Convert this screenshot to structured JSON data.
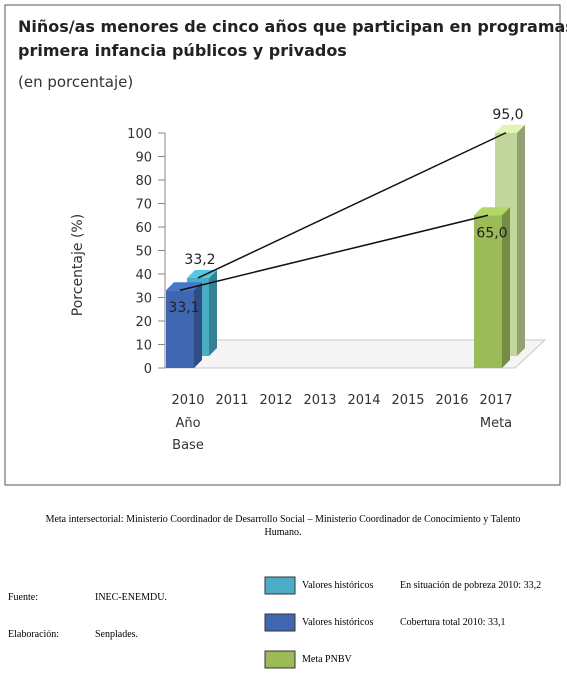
{
  "chart_data": {
    "type": "bar3d",
    "title": "Niños/as menores de cinco años que participan en programas de primera infancia públicos y privados",
    "subtitle": "(en porcentaje)",
    "ylabel": "Porcentaje (%)",
    "categories": [
      "2010",
      "2011",
      "2012",
      "2013",
      "2014",
      "2015",
      "2016",
      "2017"
    ],
    "category_sublabels": [
      [
        "Año",
        "Base"
      ],
      null,
      null,
      null,
      null,
      null,
      null,
      [
        "Meta"
      ]
    ],
    "ylim": [
      0,
      100
    ],
    "yticks": [
      0,
      10,
      20,
      30,
      40,
      50,
      60,
      70,
      80,
      90,
      100
    ],
    "series": [
      {
        "color": "#4bacc6",
        "depth": "back",
        "values": [
          33.2,
          null,
          null,
          null,
          null,
          null,
          null,
          null
        ],
        "value_labels": [
          "33,2",
          null,
          null,
          null,
          null,
          null,
          null,
          null
        ]
      },
      {
        "color": "#3f67b1",
        "depth": "front",
        "values": [
          33.1,
          null,
          null,
          null,
          null,
          null,
          null,
          null
        ],
        "value_labels": [
          "33,1",
          null,
          null,
          null,
          null,
          null,
          null,
          null
        ]
      },
      {
        "color": "#c3d69b",
        "depth": "back",
        "values": [
          null,
          null,
          null,
          null,
          null,
          null,
          null,
          95.0
        ],
        "value_labels": [
          null,
          null,
          null,
          null,
          null,
          null,
          null,
          "95,0"
        ]
      },
      {
        "color": "#9bbb59",
        "depth": "front",
        "values": [
          null,
          null,
          null,
          null,
          null,
          null,
          null,
          65.0
        ],
        "value_labels": [
          null,
          null,
          null,
          null,
          null,
          null,
          null,
          "65,0"
        ]
      }
    ]
  },
  "document": {
    "caption": "Meta intersectorial: Ministerio Coordinador de Desarrollo Social – Ministerio Coordinador de Conocimiento y Talento Humano.",
    "fuente": {
      "label": "Fuente:",
      "value": "INEC-ENEMDU."
    },
    "elaboracion": {
      "label": "Elaboración:",
      "value": "Senplades."
    },
    "legend": [
      {
        "color": "#4bacc6",
        "label": "Valores históricos",
        "note": "En situación de pobreza 2010: 33,2"
      },
      {
        "color": "#3f67b1",
        "label": "Valores históricos",
        "note": "Cobertura total 2010: 33,1"
      },
      {
        "color": "#9bbb59",
        "label": "Meta PNBV"
      }
    ]
  }
}
